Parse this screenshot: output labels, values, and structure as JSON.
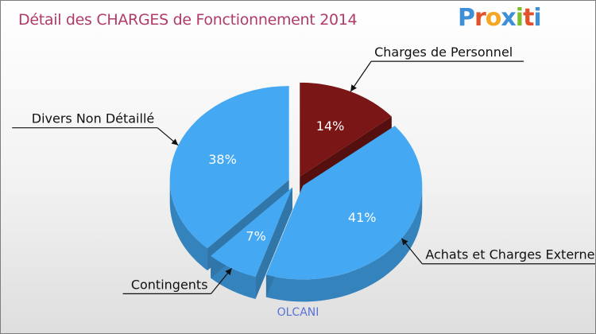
{
  "chart_data": {
    "type": "pie",
    "title": "Détail des CHARGES de Fonctionnement 2014",
    "subtitle": "OLCANI",
    "slices": [
      {
        "label": "Charges de Personnel",
        "value": 14,
        "pct_label": "14%",
        "color": "#7a1616"
      },
      {
        "label": "Achats et Charges Externes",
        "value": 41,
        "pct_label": "41%",
        "color": "#44a8f2"
      },
      {
        "label": "Contingents",
        "value": 7,
        "pct_label": "7%",
        "color": "#44a8f2"
      },
      {
        "label": "Divers Non Détaillé",
        "value": 38,
        "pct_label": "38%",
        "color": "#44a8f2"
      }
    ]
  },
  "logo": {
    "letters": [
      "P",
      "r",
      "o",
      "x",
      "i",
      "t",
      "i"
    ],
    "colors": [
      "#3d8fd8",
      "#e2522a",
      "#f5a623",
      "#3d8fd8",
      "#7cbf2a",
      "#e2522a",
      "#3d8fd8"
    ]
  }
}
